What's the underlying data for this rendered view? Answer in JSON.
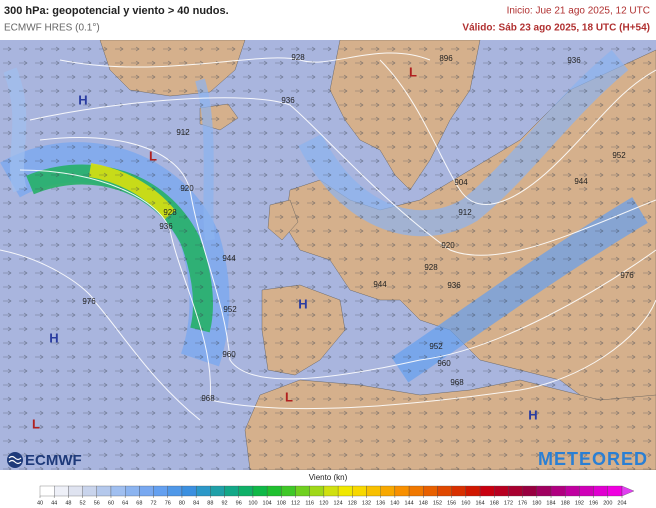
{
  "header": {
    "title": "300 hPa: geopotencial y viento > 40 nudos.",
    "model": "ECMWF HRES (0.1°)",
    "init": "Inicio: Jue 21 ago 2025, 12 UTC",
    "valid": "Válido: Sáb 23 ago 2025, 18 UTC (H+54)"
  },
  "map": {
    "contour_labels": [
      928,
      936,
      912,
      920,
      928,
      936,
      944,
      952,
      960,
      968,
      976,
      896,
      936,
      952,
      944,
      904,
      912,
      920,
      928,
      936,
      944,
      952,
      960,
      968,
      976
    ],
    "pressure_centers": [
      "H",
      "L",
      "L",
      "H",
      "H",
      "L",
      "L",
      "H"
    ]
  },
  "logos": {
    "left": "ECMWF",
    "right": "METEORED"
  },
  "colorbar": {
    "label": "Viento (kn)",
    "ticks": [
      40,
      44,
      48,
      52,
      56,
      60,
      64,
      68,
      72,
      76,
      80,
      84,
      88,
      92,
      96,
      100,
      104,
      108,
      112,
      116,
      120,
      124,
      128,
      132,
      136,
      140,
      144,
      148,
      152,
      156,
      160,
      164,
      168,
      172,
      176,
      180,
      184,
      188,
      192,
      196,
      200,
      204
    ],
    "colors": [
      "#ffffff",
      "#eef0f8",
      "#dfe3f0",
      "#c9d4ec",
      "#b4c8ec",
      "#a0bff0",
      "#8cb4f0",
      "#78a8f0",
      "#64a0f0",
      "#5098e8",
      "#3c90e0",
      "#2c98c8",
      "#20a0a8",
      "#14a888",
      "#10b068",
      "#10b848",
      "#20c030",
      "#40c828",
      "#70d020",
      "#a0d818",
      "#d0e010",
      "#f0e800",
      "#f8d800",
      "#f8c000",
      "#f8a800",
      "#f89000",
      "#f07800",
      "#e86000",
      "#e04800",
      "#d83000",
      "#d01800",
      "#c80010",
      "#b80020",
      "#a80030",
      "#980040",
      "#a00060",
      "#b00080",
      "#c000a0",
      "#d000b8",
      "#e000d0",
      "#f000e0",
      "#e040f0"
    ]
  }
}
